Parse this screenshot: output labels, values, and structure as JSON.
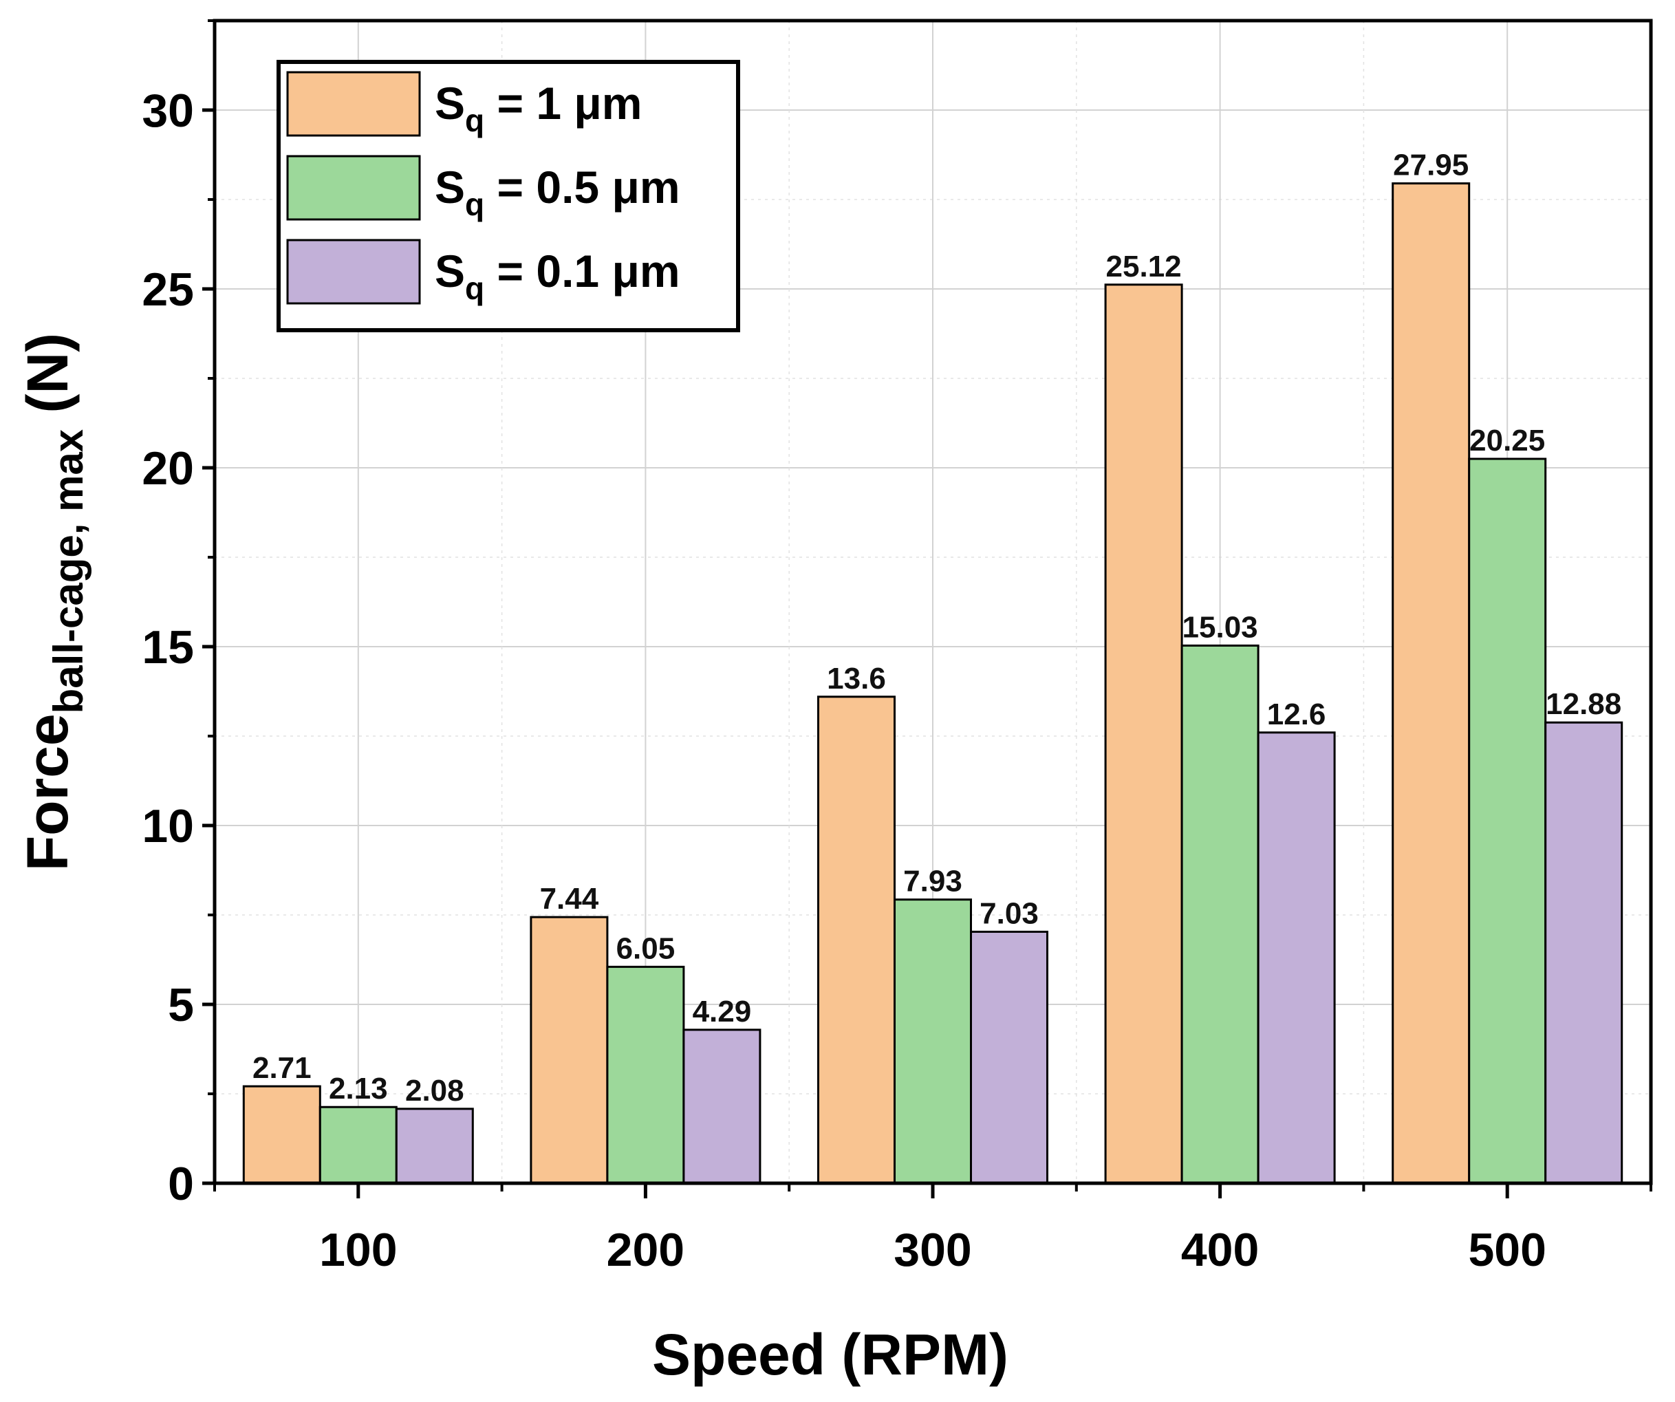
{
  "chart_data": {
    "type": "bar",
    "categories": [
      "100",
      "200",
      "300",
      "400",
      "500"
    ],
    "series": [
      {
        "name": "Sq = 1 μm",
        "sym": "S",
        "sub": "q",
        "rest": " = 1 μm",
        "color": "#F9C491",
        "values": [
          2.71,
          7.44,
          13.6,
          25.12,
          27.95
        ],
        "labels": [
          "2.71",
          "7.44",
          "13.6",
          "25.12",
          "27.95"
        ]
      },
      {
        "name": "Sq = 0.5 μm",
        "sym": "S",
        "sub": "q",
        "rest": " = 0.5 μm",
        "color": "#9CD89A",
        "values": [
          2.13,
          6.05,
          7.93,
          15.03,
          20.25
        ],
        "labels": [
          "2.13",
          "6.05",
          "7.93",
          "15.03",
          "20.25"
        ]
      },
      {
        "name": "Sq = 0.1 μm",
        "sym": "S",
        "sub": "q",
        "rest": " = 0.1 μm",
        "color": "#C2B0D8",
        "values": [
          2.08,
          4.29,
          7.03,
          12.6,
          12.88
        ],
        "labels": [
          "2.08",
          "4.29",
          "7.03",
          "12.6",
          "12.88"
        ]
      }
    ],
    "xlabel": "Speed (RPM)",
    "ylabel": {
      "main": "Force",
      "sub": "ball-cage, max",
      "unit": " (N)"
    },
    "ylim": [
      0,
      32.5
    ],
    "yticks": [
      0,
      5,
      10,
      15,
      20,
      25,
      30
    ],
    "grid": true,
    "legend_position": "top-left"
  }
}
